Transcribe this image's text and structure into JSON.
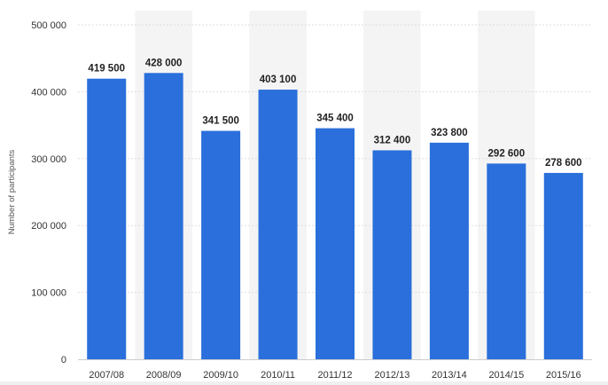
{
  "chart_data": {
    "type": "bar",
    "ylabel": "Number of participants",
    "xlabel": "",
    "title": "",
    "categories": [
      "2007/08",
      "2008/09",
      "2009/10",
      "2010/11",
      "2011/12",
      "2012/13",
      "2013/14",
      "2014/15",
      "2015/16"
    ],
    "values": [
      419500,
      428000,
      341500,
      403100,
      345400,
      312400,
      323800,
      292600,
      278600
    ],
    "value_labels": [
      "419 500",
      "428 000",
      "341 500",
      "403 100",
      "345 400",
      "312 400",
      "323 800",
      "292 600",
      "278 600"
    ],
    "yticks": [
      0,
      100000,
      200000,
      300000,
      400000,
      500000
    ],
    "ytick_labels": [
      "0",
      "100 000",
      "200 000",
      "300 000",
      "400 000",
      "500 000"
    ],
    "ylim": [
      0,
      500000
    ],
    "grid": true,
    "legend": "none",
    "colors": {
      "bar": "#2a6fdb",
      "band": "#f4f4f4",
      "grid": "#dddddd"
    }
  }
}
